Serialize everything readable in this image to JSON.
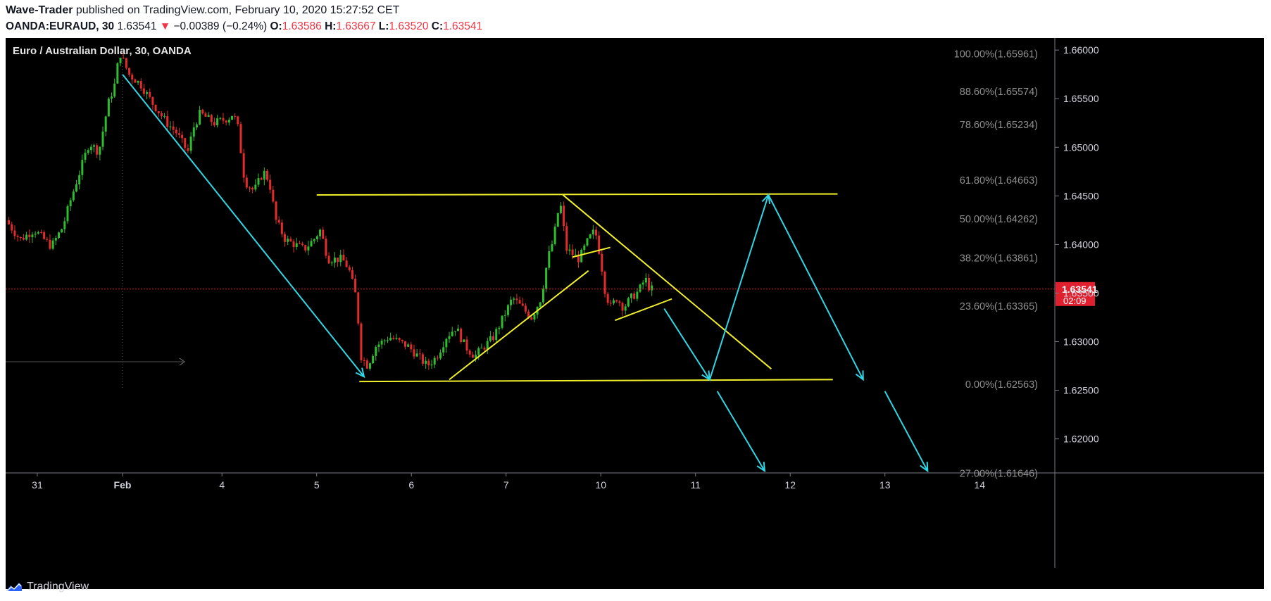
{
  "header": {
    "author": "Wave-Trader",
    "published_text": "published on TradingView.com, February 10, 2020 15:27:52 CET",
    "symbol": "OANDA:EURAUD, 30",
    "last": "1.63541",
    "change_arrow": "▼",
    "change": "−0.00389 (−0.24%)",
    "o_label": "O:",
    "o_value": "1.63586",
    "h_label": "H:",
    "h_value": "1.63667",
    "l_label": "L:",
    "l_value": "1.63520",
    "c_label": "C:",
    "c_value": "1.63541"
  },
  "chart_title": "Euro / Australian Dollar, 30, OANDA",
  "footer": {
    "brand": "TradingView",
    "icon": "tradingview-logo-icon"
  },
  "colors": {
    "background": "#000000",
    "up": "#2ebd2e",
    "down": "#e32b2b",
    "pattern": "#f0f02a",
    "projection": "#2fd6e6",
    "price_badge": "#e0202e",
    "fib_text": "#8f8f8f"
  },
  "chart_data": {
    "type": "candlestick",
    "title": "Euro / Australian Dollar, 30, OANDA",
    "ylim": [
      1.6165,
      1.6603
    ],
    "y_ticks": [
      "1.66000",
      "1.65500",
      "1.65000",
      "1.64500",
      "1.64000",
      "1.63500",
      "1.63000",
      "1.62500",
      "1.62000"
    ],
    "y_tick_values": [
      1.66,
      1.655,
      1.65,
      1.645,
      1.64,
      1.635,
      1.63,
      1.625,
      1.62
    ],
    "x_ticks": [
      "31",
      "Feb",
      "4",
      "5",
      "6",
      "7",
      "10",
      "11",
      "12",
      "13",
      "14"
    ],
    "x_tick_index": [
      -0.9,
      0,
      1.05,
      2.05,
      3.05,
      4.05,
      5.05,
      6.05,
      7.05,
      8.05,
      9.05
    ],
    "last_price": "1.63541",
    "last_price_value": 1.63541,
    "countdown": "02:09",
    "fib_levels": [
      {
        "label": "100.00%(1.65961)",
        "value": 1.65961
      },
      {
        "label": "88.60%(1.65574)",
        "value": 1.65574
      },
      {
        "label": "78.60%(1.65234)",
        "value": 1.65234
      },
      {
        "label": "61.80%(1.64663)",
        "value": 1.64663
      },
      {
        "label": "50.00%(1.64262)",
        "value": 1.64262
      },
      {
        "label": "38.20%(1.63861)",
        "value": 1.63861
      },
      {
        "label": "23.60%(1.63365)",
        "value": 1.63365
      },
      {
        "label": "0.00%(1.62563)",
        "value": 1.62563
      },
      {
        "label": "27.00%(1.61646)",
        "value": 1.61646
      }
    ],
    "price_path": [
      [
        -1.2,
        1.6425
      ],
      [
        -1.05,
        1.6405
      ],
      [
        -0.9,
        1.6415
      ],
      [
        -0.72,
        1.6398
      ],
      [
        -0.6,
        1.6418
      ],
      [
        -0.52,
        1.6445
      ],
      [
        -0.42,
        1.6475
      ],
      [
        -0.32,
        1.6505
      ],
      [
        -0.22,
        1.6495
      ],
      [
        -0.12,
        1.6545
      ],
      [
        -0.05,
        1.6565
      ],
      [
        0.0,
        1.6598
      ],
      [
        0.1,
        1.6575
      ],
      [
        0.22,
        1.6565
      ],
      [
        0.35,
        1.6545
      ],
      [
        0.5,
        1.6525
      ],
      [
        0.6,
        1.6515
      ],
      [
        0.72,
        1.6495
      ],
      [
        0.78,
        1.652
      ],
      [
        0.85,
        1.6535
      ],
      [
        1.0,
        1.6525
      ],
      [
        1.15,
        1.653
      ],
      [
        1.2,
        1.6535
      ],
      [
        1.25,
        1.652
      ],
      [
        1.32,
        1.6465
      ],
      [
        1.42,
        1.6455
      ],
      [
        1.52,
        1.6475
      ],
      [
        1.58,
        1.6465
      ],
      [
        1.65,
        1.6425
      ],
      [
        1.75,
        1.6405
      ],
      [
        1.95,
        1.6395
      ],
      [
        2.05,
        1.6405
      ],
      [
        2.12,
        1.6415
      ],
      [
        2.2,
        1.6385
      ],
      [
        2.35,
        1.6385
      ],
      [
        2.42,
        1.6375
      ],
      [
        2.5,
        1.6345
      ],
      [
        2.55,
        1.6285
      ],
      [
        2.62,
        1.6275
      ],
      [
        2.7,
        1.6295
      ],
      [
        2.85,
        1.6305
      ],
      [
        3.05,
        1.6295
      ],
      [
        3.15,
        1.6285
      ],
      [
        3.25,
        1.6275
      ],
      [
        3.35,
        1.6285
      ],
      [
        3.45,
        1.6305
      ],
      [
        3.55,
        1.6315
      ],
      [
        3.65,
        1.6295
      ],
      [
        3.75,
        1.6285
      ],
      [
        3.85,
        1.6295
      ],
      [
        3.95,
        1.6305
      ],
      [
        4.05,
        1.6325
      ],
      [
        4.15,
        1.6345
      ],
      [
        4.25,
        1.6335
      ],
      [
        4.35,
        1.6325
      ],
      [
        4.45,
        1.6345
      ],
      [
        4.52,
        1.6385
      ],
      [
        4.58,
        1.6405
      ],
      [
        4.65,
        1.6445
      ],
      [
        4.72,
        1.6395
      ],
      [
        4.85,
        1.6385
      ],
      [
        4.95,
        1.6405
      ],
      [
        5.02,
        1.6415
      ],
      [
        5.08,
        1.6385
      ],
      [
        5.12,
        1.6355
      ],
      [
        5.18,
        1.6335
      ],
      [
        5.25,
        1.6345
      ],
      [
        5.32,
        1.6335
      ],
      [
        5.4,
        1.6345
      ],
      [
        5.48,
        1.6352
      ],
      [
        5.55,
        1.6365
      ],
      [
        5.6,
        1.6354
      ]
    ],
    "drawings": {
      "pattern_lines": [
        {
          "from": [
            2.05,
            1.6451
          ],
          "to": [
            7.55,
            1.6452
          ]
        },
        {
          "from": [
            2.5,
            1.6259
          ],
          "to": [
            7.5,
            1.6261
          ]
        },
        {
          "from": [
            4.65,
            1.6451
          ],
          "to": [
            6.85,
            1.6272
          ]
        },
        {
          "from": [
            3.45,
            1.6261
          ],
          "to": [
            4.92,
            1.6373
          ]
        },
        {
          "from": [
            4.75,
            1.6387
          ],
          "to": [
            5.15,
            1.6397
          ]
        },
        {
          "from": [
            5.2,
            1.6322
          ],
          "to": [
            5.8,
            1.6344
          ]
        }
      ],
      "projection_paths": [
        [
          [
            0.0,
            1.6575
          ],
          [
            2.55,
            1.6264
          ]
        ],
        [
          [
            5.72,
            1.6334
          ],
          [
            6.2,
            1.6261
          ],
          [
            6.82,
            1.6451
          ],
          [
            7.82,
            1.6261
          ]
        ],
        [
          [
            6.28,
            1.6249
          ],
          [
            6.78,
            1.6167
          ]
        ],
        [
          [
            8.05,
            1.6249
          ],
          [
            8.5,
            1.6167
          ]
        ]
      ]
    }
  }
}
